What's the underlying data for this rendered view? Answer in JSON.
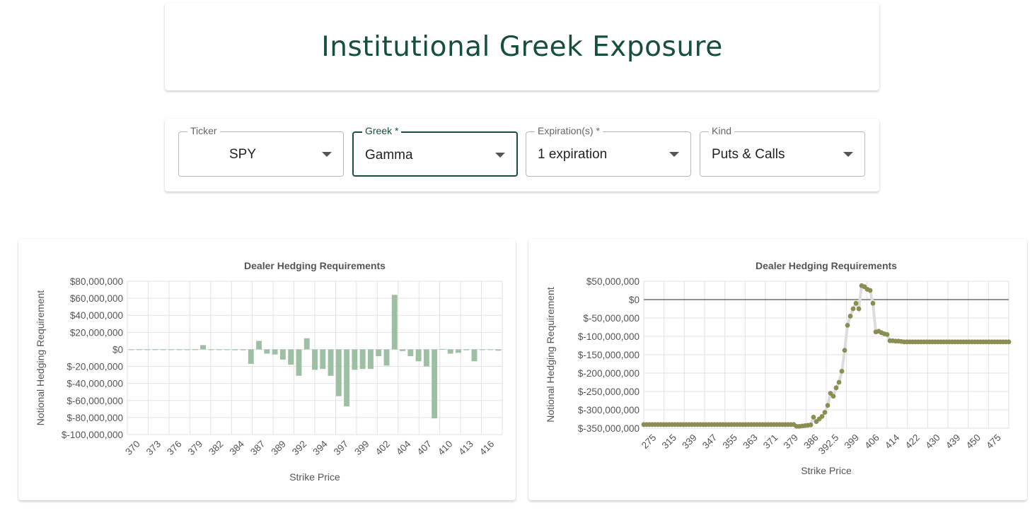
{
  "header": {
    "title": "Institutional Greek Exposure"
  },
  "controls": [
    {
      "label": "Ticker",
      "value": "SPY"
    },
    {
      "label": "Greek *",
      "value": "Gamma"
    },
    {
      "label": "Expiration(s) *",
      "value": "1 expiration"
    },
    {
      "label": "Kind",
      "value": "Puts & Calls"
    }
  ],
  "colors": {
    "accent": "#17503a",
    "bar": "#9dbfa3",
    "dot": "#8a8e52",
    "line": "#dddddd"
  },
  "chart_data": [
    {
      "type": "bar",
      "title": "Dealer Hedging Requirements",
      "xlabel": "Strike Price",
      "ylabel": "Notional Hedging Requirement",
      "ylim": [
        -100000000,
        80000000
      ],
      "yticks": [
        "$80,000,000",
        "$60,000,000",
        "$40,000,000",
        "$20,000,000",
        "$0",
        "$-20,000,000",
        "$-40,000,000",
        "$-60,000,000",
        "$-80,000,000",
        "$-100,000,000"
      ],
      "xtick_labels": [
        "370",
        "373",
        "376",
        "379",
        "382",
        "384",
        "387",
        "389",
        "392",
        "394",
        "397",
        "399",
        "402",
        "404",
        "407",
        "410",
        "413",
        "416"
      ],
      "categories": [
        "370",
        "371",
        "372",
        "373",
        "374",
        "375",
        "376",
        "377",
        "378",
        "379",
        "380",
        "381",
        "382",
        "383",
        "384",
        "385",
        "386",
        "387",
        "388",
        "389",
        "390",
        "391",
        "392",
        "393",
        "394",
        "395",
        "396",
        "397",
        "398",
        "399",
        "400",
        "401",
        "402",
        "403",
        "404",
        "405",
        "406",
        "407",
        "408",
        "409",
        "410",
        "411",
        "412",
        "413",
        "414",
        "415",
        "416"
      ],
      "values": [
        -500000,
        -500000,
        -500000,
        -500000,
        -300000,
        -500000,
        -500000,
        -300000,
        -300000,
        5000000,
        0,
        0,
        -800000,
        -1000000,
        -1000000,
        -17000000,
        10000000,
        -5000000,
        -6000000,
        -12000000,
        -18000000,
        -31000000,
        13000000,
        -24000000,
        -23000000,
        -31000000,
        -55000000,
        -67000000,
        -24000000,
        -23000000,
        -23000000,
        -8000000,
        -19000000,
        64000000,
        -2000000,
        -8000000,
        -14000000,
        -20000000,
        -81000000,
        500000,
        -5000000,
        -4000000,
        -1000000,
        -14000000,
        -500000,
        -300000,
        -1500000
      ],
      "grid": true
    },
    {
      "type": "scatter",
      "title": "Dealer Hedging Requirements",
      "xlabel": "Strike Price",
      "ylabel": "Notional Hedging Requirement",
      "ylim": [
        -350000000,
        50000000
      ],
      "yticks": [
        "$50,000,000",
        "$0",
        "$-50,000,000",
        "$-100,000,000",
        "$-150,000,000",
        "$-200,000,000",
        "$-250,000,000",
        "$-300,000,000",
        "$-350,000,000"
      ],
      "xtick_labels": [
        "275",
        "315",
        "339",
        "347",
        "355",
        "363",
        "371",
        "379",
        "386",
        "392.5",
        "399",
        "406",
        "414",
        "422",
        "430",
        "439",
        "450",
        "475"
      ],
      "values": [
        -340000000,
        -340000000,
        -340000000,
        -340000000,
        -340000000,
        -340000000,
        -340000000,
        -340000000,
        -340000000,
        -340000000,
        -340000000,
        -340000000,
        -340000000,
        -340000000,
        -340000000,
        -340000000,
        -340000000,
        -340000000,
        -340000000,
        -340000000,
        -340000000,
        -340000000,
        -340000000,
        -340000000,
        -340000000,
        -340000000,
        -340000000,
        -340000000,
        -340000000,
        -340000000,
        -340000000,
        -340000000,
        -340000000,
        -340000000,
        -340000000,
        -340000000,
        -340000000,
        -340000000,
        -340000000,
        -340000000,
        -340000000,
        -340000000,
        -340000000,
        -340000000,
        -340000000,
        -340000000,
        -340000000,
        -340000000,
        -340000000,
        -340000000,
        -340000000,
        -340000000,
        -340000000,
        -340000000,
        -345000000,
        -345000000,
        -344000000,
        -343000000,
        -342000000,
        -341000000,
        -320000000,
        -332000000,
        -325000000,
        -318000000,
        -307000000,
        -288000000,
        -255000000,
        -263000000,
        -240000000,
        -225000000,
        -195000000,
        -138000000,
        -70000000,
        -45000000,
        -25000000,
        -10000000,
        -25000000,
        38000000,
        35000000,
        28000000,
        25000000,
        -10000000,
        -88000000,
        -86000000,
        -90000000,
        -93000000,
        -95000000,
        -112000000,
        -112000000,
        -113000000,
        -113000000,
        -114000000,
        -115000000,
        -115000000,
        -115000000,
        -115000000,
        -115000000,
        -115000000,
        -115000000,
        -115000000,
        -115000000,
        -115000000,
        -115000000,
        -115000000,
        -115000000,
        -115000000,
        -115000000,
        -115000000,
        -115000000,
        -115000000,
        -115000000,
        -115000000,
        -115000000,
        -115000000,
        -115000000,
        -115000000,
        -115000000,
        -115000000,
        -115000000,
        -115000000,
        -115000000,
        -115000000,
        -115000000,
        -115000000,
        -115000000,
        -115000000,
        -115000000,
        -115000000,
        -115000000,
        -115000000
      ],
      "grid": true
    }
  ]
}
